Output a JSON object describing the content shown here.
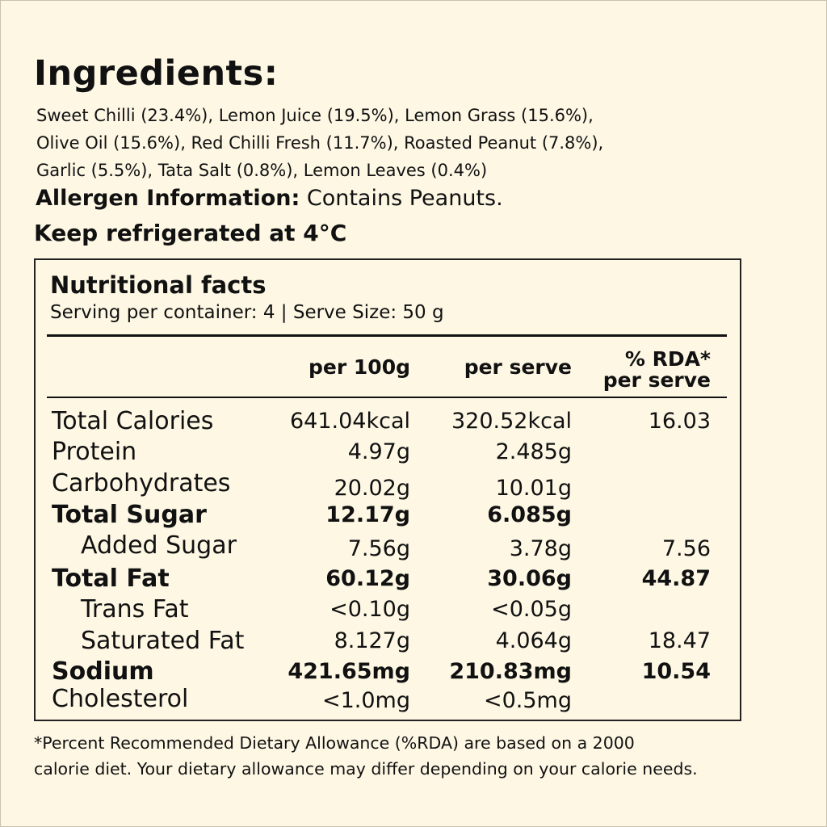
{
  "ingredients": {
    "heading": "Ingredients:",
    "lines": [
      "Sweet Chilli (23.4%), Lemon Juice (19.5%), Lemon Grass (15.6%),",
      "Olive Oil (15.6%), Red Chilli Fresh (11.7%), Roasted Peanut (7.8%),",
      "Garlic (5.5%), Tata Salt (0.8%), Lemon Leaves (0.4%)"
    ]
  },
  "allergen": {
    "label": "Allergen Information:",
    "value": " Contains Peanuts."
  },
  "storage": "Keep refrigerated at 4°C",
  "nutrition": {
    "title": "Nutritional facts",
    "serving": "Serving per container: 4 | Serve Size: 50 g",
    "headers": {
      "per100": "per 100g",
      "perServe": "per serve",
      "rda_line1": "% RDA*",
      "rda_line2": "per serve"
    },
    "rows": [
      {
        "label": "Total Calories",
        "per100": "641.04kcal",
        "perServe": "320.52kcal",
        "rda": "16.03"
      },
      {
        "label": "Protein",
        "per100": "4.97g",
        "perServe": "2.485g",
        "rda": ""
      },
      {
        "label": "Carbohydrates",
        "per100": "20.02g",
        "perServe": "10.01g",
        "rda": ""
      },
      {
        "label": "Total Sugar",
        "per100": "12.17g",
        "perServe": "6.085g",
        "rda": ""
      },
      {
        "label": "Added Sugar",
        "per100": "7.56g",
        "perServe": "3.78g",
        "rda": "7.56"
      },
      {
        "label": "Total Fat",
        "per100": "60.12g",
        "perServe": "30.06g",
        "rda": "44.87"
      },
      {
        "label": "Trans Fat",
        "per100": "<0.10g",
        "perServe": "<0.05g",
        "rda": ""
      },
      {
        "label": "Saturated Fat",
        "per100": "8.127g",
        "perServe": "4.064g",
        "rda": "18.47"
      },
      {
        "label": "Sodium",
        "per100": "421.65mg",
        "perServe": "210.83mg",
        "rda": "10.54"
      },
      {
        "label": "Cholesterol",
        "per100": "<1.0mg",
        "perServe": "<0.5mg",
        "rda": ""
      }
    ]
  },
  "footnote": [
    "*Percent Recommended Dietary Allowance (%RDA) are based on a 2000",
    "calorie diet. Your dietary allowance may differ depending on your calorie needs."
  ]
}
